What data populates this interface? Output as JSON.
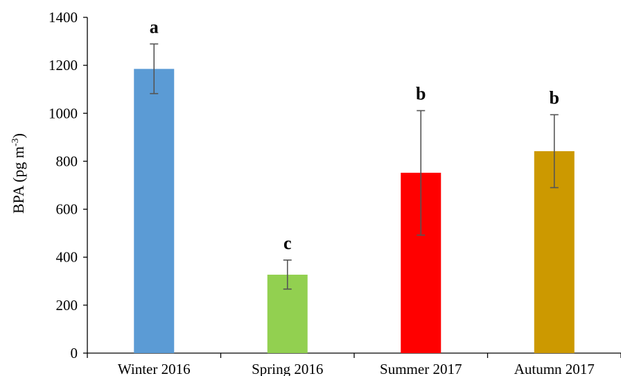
{
  "chart_data": {
    "type": "bar",
    "categories": [
      "Winter 2016",
      "Spring 2016",
      "Summer 2017",
      "Autumn 2017"
    ],
    "values": [
      1185,
      327,
      752,
      842
    ],
    "error_low": [
      1082,
      267,
      492,
      690
    ],
    "error_high": [
      1289,
      388,
      1011,
      994
    ],
    "significance_labels": [
      "a",
      "c",
      "b",
      "b"
    ],
    "colors": [
      "#5b9bd5",
      "#92d050",
      "#ff0000",
      "#cc9900"
    ],
    "ylabel": "BPA (pg m",
    "ylabel_sup": "-3",
    "ylabel_close": ")",
    "ylim": [
      0,
      1400
    ],
    "yticks": [
      "0",
      "200",
      "400",
      "600",
      "800",
      "1000",
      "1200",
      "1400"
    ],
    "grid": false
  }
}
